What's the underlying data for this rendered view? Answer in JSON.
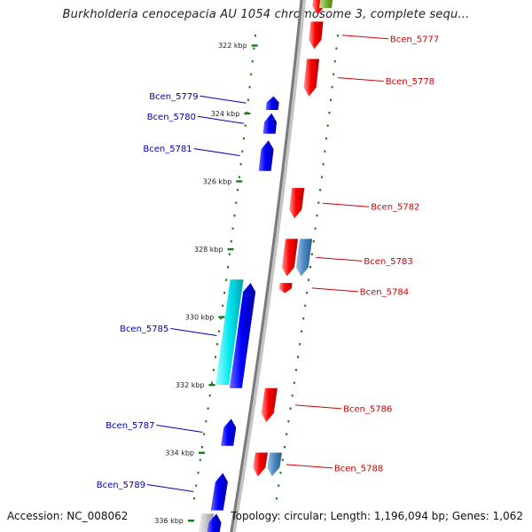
{
  "title": "Burkholderia cenocepacia AU 1054 chromosome 3, complete sequ...",
  "accession_text": "Accession: NC_008062",
  "topology_text": "Topology: circular; Length: 1,196,094 bp; Genes: 1,062",
  "colors": {
    "forward_gene": "#e00000",
    "reverse_gene": "#0000e0",
    "rna_gene": "#4a7fb0",
    "cyan_gene": "#00d8e0",
    "backbone": "#888888",
    "dots": "#1a7a1a",
    "fwd_label": "#cc0000",
    "rev_label": "#0000aa"
  },
  "ticks": [
    {
      "kbp": 322,
      "label": "322 kbp"
    },
    {
      "kbp": 324,
      "label": "324 kbp"
    },
    {
      "kbp": 326,
      "label": "326 kbp"
    },
    {
      "kbp": 328,
      "label": "328 kbp"
    },
    {
      "kbp": 330,
      "label": "330 kbp"
    },
    {
      "kbp": 332,
      "label": "332 kbp"
    },
    {
      "kbp": 334,
      "label": "334 kbp"
    },
    {
      "kbp": 336,
      "label": "336 kbp"
    }
  ],
  "genes": [
    {
      "id": "top-red-1",
      "strand": "+",
      "type": "cds",
      "start": 320.4,
      "end": 321.1,
      "label": ""
    },
    {
      "id": "top-green",
      "strand": "+",
      "type": "other",
      "start": 320.4,
      "end": 320.9,
      "label": ""
    },
    {
      "id": "Bcen_5777",
      "strand": "+",
      "type": "cds",
      "start": 321.3,
      "end": 322.1,
      "label": "Bcen_5777"
    },
    {
      "id": "Bcen_5778",
      "strand": "+",
      "type": "cds",
      "start": 322.4,
      "end": 323.5,
      "label": "Bcen_5778"
    },
    {
      "id": "Bcen_5779",
      "strand": "-",
      "type": "cds",
      "start": 323.5,
      "end": 323.9,
      "label": "Bcen_5779"
    },
    {
      "id": "Bcen_5780",
      "strand": "-",
      "type": "cds",
      "start": 324.0,
      "end": 324.6,
      "label": "Bcen_5780"
    },
    {
      "id": "Bcen_5781",
      "strand": "-",
      "type": "cds",
      "start": 324.8,
      "end": 325.7,
      "label": "Bcen_5781"
    },
    {
      "id": "Bcen_5782",
      "strand": "+",
      "type": "cds",
      "start": 326.2,
      "end": 327.1,
      "label": "Bcen_5782"
    },
    {
      "id": "Bcen_5783",
      "strand": "+",
      "type": "cds",
      "start": 327.7,
      "end": 328.8,
      "label": "Bcen_5783"
    },
    {
      "id": "Bcen_5783b",
      "strand": "+",
      "type": "rna",
      "start": 327.7,
      "end": 328.8,
      "label": ""
    },
    {
      "id": "Bcen_5784",
      "strand": "+",
      "type": "cds",
      "start": 329.0,
      "end": 329.3,
      "label": "Bcen_5784"
    },
    {
      "id": "Bcen_5785",
      "strand": "-",
      "type": "cds",
      "start": 329.0,
      "end": 332.1,
      "label": "Bcen_5785"
    },
    {
      "id": "Bcen_5785c",
      "strand": "-",
      "type": "cyan",
      "start": 328.9,
      "end": 332.0,
      "label": ""
    },
    {
      "id": "Bcen_5786",
      "strand": "+",
      "type": "cds",
      "start": 332.1,
      "end": 333.1,
      "label": "Bcen_5786"
    },
    {
      "id": "Bcen_5787",
      "strand": "-",
      "type": "cds",
      "start": 333.0,
      "end": 333.8,
      "label": "Bcen_5787"
    },
    {
      "id": "Bcen_5788",
      "strand": "+",
      "type": "cds",
      "start": 334.0,
      "end": 334.7,
      "label": "Bcen_5788"
    },
    {
      "id": "Bcen_5788b",
      "strand": "+",
      "type": "rna",
      "start": 334.0,
      "end": 334.7,
      "label": ""
    },
    {
      "id": "Bcen_5789",
      "strand": "-",
      "type": "cds",
      "start": 334.6,
      "end": 335.7,
      "label": "Bcen_5789"
    },
    {
      "id": "bottom-grey",
      "strand": "-",
      "type": "grey",
      "start": 335.8,
      "end": 336.4,
      "label": ""
    },
    {
      "id": "bottom-blue",
      "strand": "-",
      "type": "cds",
      "start": 335.8,
      "end": 336.4,
      "label": ""
    }
  ]
}
